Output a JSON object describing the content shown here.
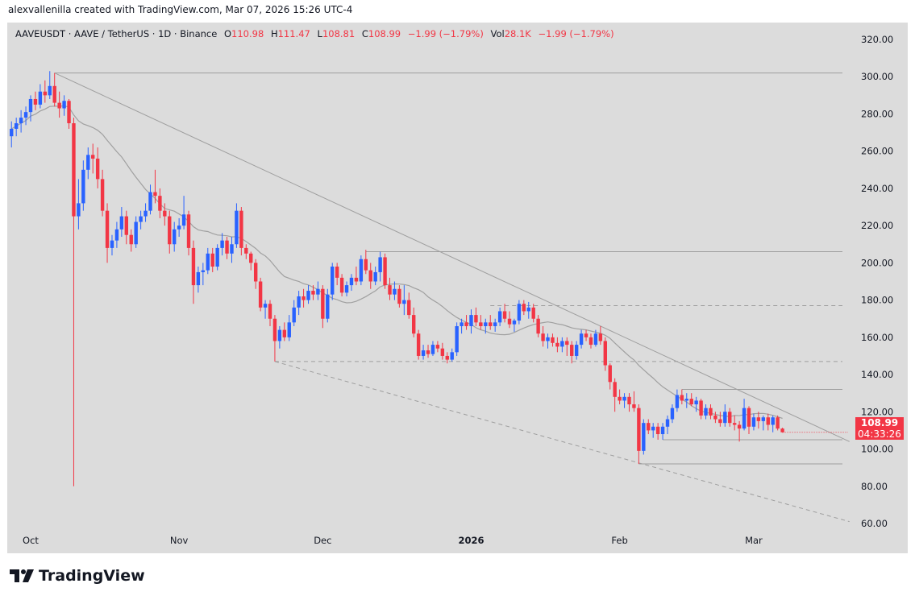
{
  "credit": "alexvallenilla created with TradingView.com, Mar 07, 2026 15:26 UTC-4",
  "legend": {
    "symbol": "AAVEUSDT · AAVE / TetherUS · 1D · Binance",
    "o_label": "O",
    "o": "110.98",
    "h_label": "H",
    "h": "111.47",
    "l_label": "L",
    "l": "108.81",
    "c_label": "C",
    "c": "108.99",
    "change": "−1.99 (−1.79%)",
    "vol_label": "Vol",
    "vol": "28.1K",
    "vol_change": "−1.99 (−1.79%)"
  },
  "price_label": {
    "price": "108.99",
    "countdown": "04:33:26"
  },
  "logo": "TradingView",
  "colors": {
    "up": "#2962ff",
    "down": "#f23645",
    "background": "#dcdcdc",
    "lines": "#9e9e9e"
  },
  "chart_data": {
    "type": "candlestick",
    "ylim": [
      60,
      320
    ],
    "yticks": [
      "320.00",
      "300.00",
      "280.00",
      "260.00",
      "240.00",
      "220.00",
      "200.00",
      "180.00",
      "160.00",
      "140.00",
      "120.00",
      "100.00",
      "80.00",
      "60.00"
    ],
    "xticks": [
      {
        "label": "Oct",
        "date": "2025-10-01"
      },
      {
        "label": "Nov",
        "date": "2025-11-01"
      },
      {
        "label": "Dec",
        "date": "2025-12-01"
      },
      {
        "label": "2026",
        "date": "2026-01-01"
      },
      {
        "label": "Feb",
        "date": "2026-02-01"
      },
      {
        "label": "Mar",
        "date": "2026-03-01"
      }
    ],
    "moving_average_period": 20,
    "candles": [
      [
        "2025-09-27",
        268,
        276,
        262,
        272
      ],
      [
        "2025-09-28",
        272,
        278,
        268,
        275
      ],
      [
        "2025-09-29",
        275,
        282,
        270,
        278
      ],
      [
        "2025-09-30",
        278,
        284,
        274,
        281
      ],
      [
        "2025-10-01",
        281,
        290,
        276,
        288
      ],
      [
        "2025-10-02",
        288,
        292,
        282,
        285
      ],
      [
        "2025-10-03",
        285,
        296,
        283,
        292
      ],
      [
        "2025-10-04",
        292,
        298,
        286,
        290
      ],
      [
        "2025-10-05",
        290,
        303,
        288,
        295
      ],
      [
        "2025-10-06",
        295,
        302,
        284,
        286
      ],
      [
        "2025-10-07",
        286,
        292,
        278,
        283
      ],
      [
        "2025-10-08",
        283,
        290,
        279,
        287
      ],
      [
        "2025-10-09",
        287,
        288,
        272,
        275
      ],
      [
        "2025-10-10",
        275,
        278,
        80,
        225
      ],
      [
        "2025-10-11",
        225,
        245,
        218,
        232
      ],
      [
        "2025-10-12",
        232,
        255,
        228,
        250
      ],
      [
        "2025-10-13",
        250,
        262,
        245,
        258
      ],
      [
        "2025-10-14",
        258,
        264,
        248,
        256
      ],
      [
        "2025-10-15",
        256,
        262,
        240,
        245
      ],
      [
        "2025-10-16",
        245,
        250,
        225,
        228
      ],
      [
        "2025-10-17",
        228,
        232,
        200,
        208
      ],
      [
        "2025-10-18",
        208,
        215,
        204,
        212
      ],
      [
        "2025-10-19",
        212,
        222,
        208,
        218
      ],
      [
        "2025-10-20",
        218,
        230,
        214,
        225
      ],
      [
        "2025-10-21",
        225,
        228,
        210,
        215
      ],
      [
        "2025-10-22",
        215,
        218,
        206,
        210
      ],
      [
        "2025-10-23",
        210,
        225,
        208,
        222
      ],
      [
        "2025-10-24",
        222,
        228,
        218,
        225
      ],
      [
        "2025-10-25",
        225,
        232,
        222,
        228
      ],
      [
        "2025-10-26",
        228,
        242,
        226,
        238
      ],
      [
        "2025-10-27",
        238,
        250,
        232,
        236
      ],
      [
        "2025-10-28",
        236,
        240,
        224,
        228
      ],
      [
        "2025-10-29",
        228,
        232,
        220,
        225
      ],
      [
        "2025-10-30",
        225,
        228,
        205,
        210
      ],
      [
        "2025-10-31",
        210,
        222,
        206,
        218
      ],
      [
        "2025-11-01",
        218,
        224,
        214,
        220
      ],
      [
        "2025-11-02",
        220,
        236,
        218,
        226
      ],
      [
        "2025-11-03",
        226,
        228,
        204,
        208
      ],
      [
        "2025-11-04",
        208,
        212,
        178,
        188
      ],
      [
        "2025-11-05",
        188,
        198,
        184,
        195
      ],
      [
        "2025-11-06",
        195,
        200,
        188,
        196
      ],
      [
        "2025-11-07",
        196,
        208,
        194,
        205
      ],
      [
        "2025-11-08",
        205,
        208,
        195,
        198
      ],
      [
        "2025-11-09",
        198,
        210,
        196,
        208
      ],
      [
        "2025-11-10",
        208,
        216,
        204,
        212
      ],
      [
        "2025-11-11",
        212,
        214,
        202,
        205
      ],
      [
        "2025-11-12",
        205,
        214,
        200,
        210
      ],
      [
        "2025-11-13",
        210,
        232,
        208,
        228
      ],
      [
        "2025-11-14",
        228,
        230,
        204,
        208
      ],
      [
        "2025-11-15",
        208,
        210,
        202,
        205
      ],
      [
        "2025-11-16",
        205,
        206,
        196,
        200
      ],
      [
        "2025-11-17",
        200,
        202,
        186,
        190
      ],
      [
        "2025-11-18",
        190,
        192,
        174,
        176
      ],
      [
        "2025-11-19",
        176,
        180,
        170,
        178
      ],
      [
        "2025-11-20",
        178,
        180,
        166,
        170
      ],
      [
        "2025-11-21",
        170,
        172,
        147,
        158
      ],
      [
        "2025-11-22",
        158,
        166,
        154,
        164
      ],
      [
        "2025-11-23",
        164,
        168,
        158,
        160
      ],
      [
        "2025-11-24",
        160,
        172,
        158,
        168
      ],
      [
        "2025-11-25",
        168,
        180,
        166,
        176
      ],
      [
        "2025-11-26",
        176,
        185,
        172,
        182
      ],
      [
        "2025-11-27",
        182,
        186,
        176,
        180
      ],
      [
        "2025-11-28",
        180,
        188,
        178,
        185
      ],
      [
        "2025-11-29",
        185,
        188,
        180,
        183
      ],
      [
        "2025-11-30",
        183,
        190,
        180,
        186
      ],
      [
        "2025-12-01",
        186,
        188,
        165,
        170
      ],
      [
        "2025-12-02",
        170,
        186,
        168,
        183
      ],
      [
        "2025-12-03",
        183,
        200,
        180,
        198
      ],
      [
        "2025-12-04",
        198,
        200,
        188,
        192
      ],
      [
        "2025-12-05",
        192,
        194,
        182,
        184
      ],
      [
        "2025-12-06",
        184,
        190,
        182,
        188
      ],
      [
        "2025-12-07",
        188,
        194,
        185,
        192
      ],
      [
        "2025-12-08",
        192,
        198,
        188,
        190
      ],
      [
        "2025-12-09",
        190,
        204,
        188,
        202
      ],
      [
        "2025-12-10",
        202,
        207,
        194,
        196
      ],
      [
        "2025-12-11",
        196,
        200,
        186,
        190
      ],
      [
        "2025-12-12",
        190,
        198,
        188,
        195
      ],
      [
        "2025-12-13",
        195,
        206,
        190,
        203
      ],
      [
        "2025-12-14",
        203,
        205,
        186,
        188
      ],
      [
        "2025-12-15",
        188,
        192,
        180,
        183
      ],
      [
        "2025-12-16",
        183,
        190,
        180,
        186
      ],
      [
        "2025-12-17",
        186,
        188,
        176,
        178
      ],
      [
        "2025-12-18",
        178,
        188,
        172,
        180
      ],
      [
        "2025-12-19",
        180,
        184,
        170,
        172
      ],
      [
        "2025-12-20",
        172,
        176,
        160,
        162
      ],
      [
        "2025-12-21",
        162,
        164,
        148,
        150
      ],
      [
        "2025-12-22",
        150,
        156,
        148,
        153
      ],
      [
        "2025-12-23",
        153,
        156,
        149,
        151
      ],
      [
        "2025-12-24",
        151,
        158,
        150,
        156
      ],
      [
        "2025-12-25",
        156,
        158,
        152,
        154
      ],
      [
        "2025-12-26",
        154,
        157,
        148,
        150
      ],
      [
        "2025-12-27",
        150,
        152,
        146,
        148
      ],
      [
        "2025-12-28",
        148,
        154,
        147,
        152
      ],
      [
        "2025-12-29",
        152,
        168,
        150,
        166
      ],
      [
        "2025-12-30",
        166,
        170,
        162,
        168
      ],
      [
        "2025-12-31",
        168,
        172,
        164,
        166
      ],
      [
        "2026-01-01",
        166,
        175,
        162,
        172
      ],
      [
        "2026-01-02",
        172,
        176,
        166,
        168
      ],
      [
        "2026-01-03",
        168,
        172,
        164,
        166
      ],
      [
        "2026-01-04",
        166,
        170,
        162,
        168
      ],
      [
        "2026-01-05",
        168,
        172,
        164,
        166
      ],
      [
        "2026-01-06",
        166,
        170,
        163,
        168
      ],
      [
        "2026-01-07",
        168,
        176,
        166,
        174
      ],
      [
        "2026-01-08",
        174,
        178,
        168,
        170
      ],
      [
        "2026-01-09",
        170,
        174,
        165,
        167
      ],
      [
        "2026-01-10",
        167,
        170,
        163,
        169
      ],
      [
        "2026-01-11",
        169,
        180,
        167,
        178
      ],
      [
        "2026-01-12",
        178,
        180,
        172,
        174
      ],
      [
        "2026-01-13",
        174,
        179,
        170,
        176
      ],
      [
        "2026-01-14",
        176,
        178,
        168,
        170
      ],
      [
        "2026-01-15",
        170,
        172,
        160,
        162
      ],
      [
        "2026-01-16",
        162,
        166,
        155,
        158
      ],
      [
        "2026-01-17",
        158,
        162,
        154,
        160
      ],
      [
        "2026-01-18",
        160,
        162,
        155,
        157
      ],
      [
        "2026-01-19",
        157,
        160,
        152,
        155
      ],
      [
        "2026-01-20",
        155,
        160,
        152,
        158
      ],
      [
        "2026-01-21",
        158,
        160,
        150,
        156
      ],
      [
        "2026-01-22",
        156,
        158,
        146,
        150
      ],
      [
        "2026-01-23",
        150,
        158,
        148,
        156
      ],
      [
        "2026-01-24",
        156,
        164,
        154,
        162
      ],
      [
        "2026-01-25",
        162,
        164,
        158,
        160
      ],
      [
        "2026-01-26",
        160,
        162,
        154,
        156
      ],
      [
        "2026-01-27",
        156,
        164,
        155,
        162
      ],
      [
        "2026-01-28",
        162,
        166,
        156,
        158
      ],
      [
        "2026-01-29",
        158,
        160,
        142,
        145
      ],
      [
        "2026-01-30",
        145,
        146,
        132,
        136
      ],
      [
        "2026-01-31",
        136,
        138,
        120,
        128
      ],
      [
        "2026-02-01",
        128,
        132,
        124,
        126
      ],
      [
        "2026-02-02",
        126,
        130,
        122,
        128
      ],
      [
        "2026-02-03",
        128,
        130,
        120,
        124
      ],
      [
        "2026-02-04",
        124,
        131,
        120,
        122
      ],
      [
        "2026-02-05",
        122,
        124,
        92,
        99
      ],
      [
        "2026-02-06",
        99,
        116,
        97,
        114
      ],
      [
        "2026-02-07",
        114,
        116,
        108,
        110
      ],
      [
        "2026-02-08",
        110,
        114,
        106,
        112
      ],
      [
        "2026-02-09",
        112,
        114,
        105,
        108
      ],
      [
        "2026-02-10",
        108,
        114,
        105,
        112
      ],
      [
        "2026-02-11",
        112,
        118,
        108,
        116
      ],
      [
        "2026-02-12",
        116,
        124,
        114,
        122
      ],
      [
        "2026-02-13",
        122,
        132,
        120,
        129
      ],
      [
        "2026-02-14",
        129,
        132,
        124,
        126
      ],
      [
        "2026-02-15",
        126,
        130,
        122,
        127
      ],
      [
        "2026-02-16",
        127,
        130,
        123,
        124
      ],
      [
        "2026-02-17",
        124,
        128,
        120,
        126
      ],
      [
        "2026-02-18",
        126,
        127,
        116,
        118
      ],
      [
        "2026-02-19",
        118,
        124,
        116,
        122
      ],
      [
        "2026-02-20",
        122,
        124,
        116,
        118
      ],
      [
        "2026-02-21",
        118,
        120,
        114,
        116
      ],
      [
        "2026-02-22",
        116,
        120,
        112,
        114
      ],
      [
        "2026-02-23",
        114,
        124,
        112,
        120
      ],
      [
        "2026-02-24",
        120,
        122,
        112,
        114
      ],
      [
        "2026-02-25",
        114,
        118,
        110,
        113
      ],
      [
        "2026-02-26",
        113,
        115,
        104,
        111
      ],
      [
        "2026-02-27",
        111,
        127,
        110,
        122
      ],
      [
        "2026-02-28",
        122,
        123,
        108,
        112
      ],
      [
        "2026-03-01",
        112,
        119,
        110,
        117
      ],
      [
        "2026-03-02",
        117,
        120,
        111,
        115
      ],
      [
        "2026-03-03",
        115,
        118,
        110,
        117
      ],
      [
        "2026-03-04",
        117,
        119,
        110,
        113
      ],
      [
        "2026-03-05",
        113,
        118,
        109,
        117
      ],
      [
        "2026-03-06",
        117,
        118,
        110,
        110.98
      ],
      [
        "2026-03-07",
        110.98,
        111.47,
        108.81,
        108.99
      ]
    ],
    "drawings": [
      {
        "type": "trendline",
        "style": "solid",
        "from": [
          "2025-10-06",
          302
        ],
        "to": [
          "2026-03-21",
          104
        ]
      },
      {
        "type": "trendline",
        "style": "dashed",
        "from": [
          "2025-11-21",
          147
        ],
        "to": [
          "2026-03-21",
          61
        ]
      },
      {
        "type": "hline",
        "style": "solid",
        "from": "2025-10-06",
        "price": 302
      },
      {
        "type": "hline",
        "style": "solid",
        "from": "2025-12-10",
        "price": 206
      },
      {
        "type": "hline",
        "style": "dashed",
        "from": "2026-01-05",
        "price": 177
      },
      {
        "type": "hline",
        "style": "dashed",
        "from": "2025-11-21",
        "price": 147
      },
      {
        "type": "hline",
        "style": "solid",
        "from": "2026-02-14",
        "price": 132
      },
      {
        "type": "hline",
        "style": "solid",
        "from": "2026-02-10",
        "price": 105
      },
      {
        "type": "hline",
        "style": "solid",
        "from": "2026-02-05",
        "price": 92
      }
    ]
  }
}
